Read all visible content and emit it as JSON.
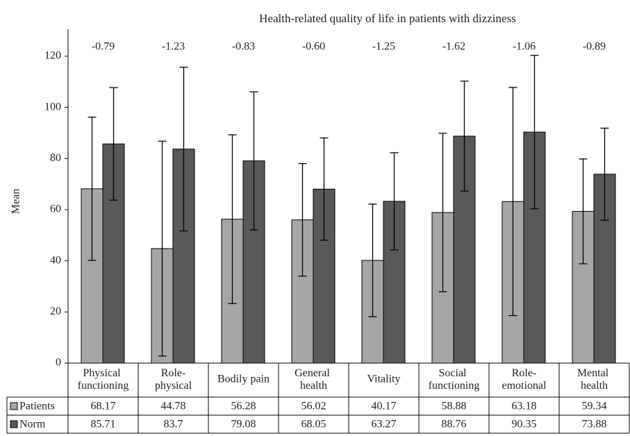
{
  "chart_data": {
    "type": "bar",
    "title": "Health-related quality of life in patients with dizziness",
    "ylabel": "Mean",
    "categories": [
      "Physical functioning",
      "Role-physical",
      "Bodily pain",
      "General health",
      "Vitality",
      "Social functioning",
      "Role-emotional",
      "Mental health"
    ],
    "series": [
      {
        "name": "Patients",
        "color": "#a6a6a6",
        "values": [
          68.17,
          44.78,
          56.28,
          56.02,
          40.17,
          58.88,
          63.18,
          59.34
        ],
        "errors": [
          28,
          42,
          33,
          22,
          22,
          31,
          44.6,
          20.5
        ]
      },
      {
        "name": "Norm",
        "color": "#595959",
        "values": [
          85.71,
          83.7,
          79.08,
          68.05,
          63.27,
          88.76,
          90.35,
          73.88
        ],
        "errors": [
          22,
          32,
          27,
          20,
          19,
          21.5,
          30,
          18
        ]
      }
    ],
    "annotations": [
      "-0.79",
      "-1.23",
      "-0.83",
      "-0.60",
      "-1.25",
      "-1.62",
      "-1.06",
      "-0.89"
    ],
    "ylim": [
      0,
      120
    ],
    "yticks": [
      0,
      20,
      40,
      60,
      80,
      100,
      120
    ]
  }
}
